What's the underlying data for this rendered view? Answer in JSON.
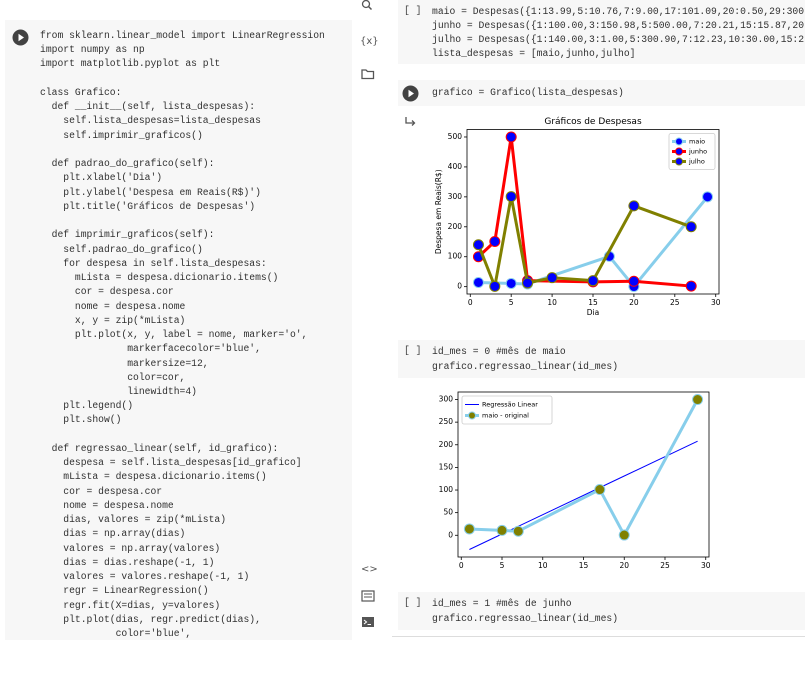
{
  "sidebar": {
    "variables_icon": "{x}",
    "code_icon": "<>"
  },
  "left_cell": {
    "code_blocks": [
      [
        "from sklearn.linear_model import LinearRegression",
        "import numpy as np",
        "import matplotlib.pyplot as plt"
      ],
      [
        "class Grafico:",
        "  def __init__(self, lista_despesas):",
        "    self.lista_despesas=lista_despesas",
        "    self.imprimir_graficos()"
      ],
      [
        "  def padrao_do_grafico(self):",
        "    plt.xlabel('Dia')",
        "    plt.ylabel('Despesa em Reais(R$)')",
        "    plt.title('Gráficos de Despesas')"
      ],
      [
        "  def imprimir_graficos(self):",
        "    self.padrao_do_grafico()",
        "    for despesa in self.lista_despesas:",
        "      mLista = despesa.dicionario.items()",
        "      cor = despesa.cor",
        "      nome = despesa.nome",
        "      x, y = zip(*mLista)",
        "      plt.plot(x, y, label = nome, marker='o',",
        "               markerfacecolor='blue',",
        "               markersize=12,",
        "               color=cor,",
        "               linewidth=4)",
        "    plt.legend()",
        "    plt.show()"
      ],
      [
        "  def regressao_linear(self, id_grafico):",
        "    despesa = self.lista_despesas[id_grafico]",
        "    mLista = despesa.dicionario.items()",
        "    cor = despesa.cor",
        "    nome = despesa.nome",
        "    dias, valores = zip(*mLista)",
        "    dias = np.array(dias)",
        "    valores = np.array(valores)",
        "    dias = dias.reshape(-1, 1)",
        "    valores = valores.reshape(-1, 1)",
        "    regr = LinearRegression()",
        "    regr.fit(X=dias, y=valores)",
        "    plt.plot(dias, regr.predict(dias),",
        "             color='blue',"
      ]
    ]
  },
  "cells": [
    {
      "status": "[ ]",
      "code": [
        "maio = Despesas({1:13.99,5:10.76,7:9.00,17:101.09,20:0.50,29:300",
        "junho = Despesas({1:100.00,3:150.98,5:500.00,7:20.21,15:15.87,20",
        "julho = Despesas({1:140.00,3:1.00,5:300.90,7:12.23,10:30.00,15:2",
        "lista_despesas = [maio,junho,julho]"
      ]
    },
    {
      "code": [
        "grafico = Grafico(lista_despesas)"
      ]
    },
    {
      "status": "[ ]",
      "code": [
        "id_mes = 0 #mês de maio",
        "grafico.regressao_linear(id_mes)"
      ]
    },
    {
      "status": "[ ]",
      "code": [
        "id_mes = 1 #mês de junho",
        "grafico.regressao_linear(id_mes)"
      ]
    }
  ],
  "chart_data": [
    {
      "type": "line",
      "title": "Gráficos de Despesas",
      "x_label": "Dia",
      "y_label": "Despesa em Reais(R$)",
      "xlim": [
        -0.4,
        30.4
      ],
      "ylim": [
        -24.5,
        525
      ],
      "xticks": [
        0,
        5,
        10,
        15,
        20,
        25,
        30
      ],
      "yticks": [
        0,
        100,
        200,
        300,
        400,
        500
      ],
      "legend": "upper right",
      "series": [
        {
          "name": "maio",
          "color": "#87ceeb",
          "marker_color": "#0000ff",
          "line_width": 3,
          "x": [
            1,
            5,
            7,
            17,
            20,
            29
          ],
          "values": [
            13.99,
            10.76,
            9.0,
            101.09,
            0.5,
            300
          ]
        },
        {
          "name": "junho",
          "color": "#ff0000",
          "marker_color": "#0000ff",
          "line_width": 3,
          "x": [
            1,
            3,
            5,
            7,
            15,
            20,
            27
          ],
          "values": [
            100,
            150.98,
            500,
            20.21,
            15.87,
            18,
            2
          ]
        },
        {
          "name": "julho",
          "color": "#808000",
          "marker_color": "#0000ff",
          "line_width": 3,
          "x": [
            1,
            3,
            5,
            7,
            10,
            15,
            20,
            27
          ],
          "values": [
            140,
            1,
            300.9,
            12.23,
            30,
            20,
            270,
            200
          ]
        }
      ]
    },
    {
      "type": "line",
      "xlim": [
        -0.4,
        30.4
      ],
      "ylim": [
        -48,
        316.6
      ],
      "xticks": [
        0,
        5,
        10,
        15,
        20,
        25,
        30
      ],
      "yticks": [
        0,
        50,
        100,
        150,
        200,
        250,
        300
      ],
      "legend": "upper left",
      "series": [
        {
          "name": "Regressão Linear",
          "color": "#0000ff",
          "line_width": 1,
          "x": [
            1,
            5,
            7,
            17,
            20,
            29
          ],
          "values": [
            -31.4,
            2.8,
            19.8,
            105.3,
            131.0,
            207.9
          ]
        },
        {
          "name": "maio - original",
          "color": "#87ceeb",
          "marker_color": "#808000",
          "line_width": 3,
          "x": [
            1,
            5,
            7,
            17,
            20,
            29
          ],
          "values": [
            13.99,
            10.76,
            9.0,
            101.09,
            0.5,
            300
          ]
        }
      ]
    }
  ]
}
